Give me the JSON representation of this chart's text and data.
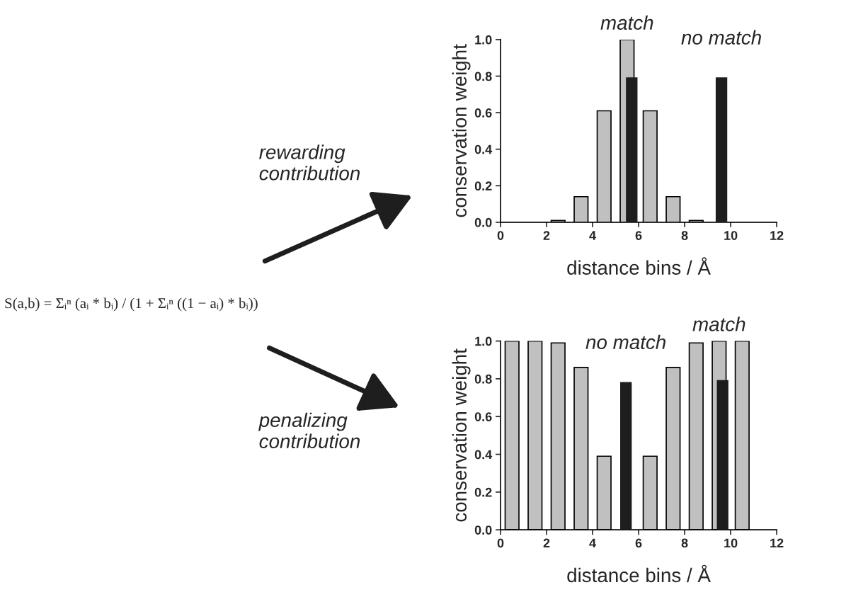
{
  "chart_data": [
    {
      "type": "other",
      "annotations": [
        "S(a,b) = Σᵢⁿ (aᵢ * bᵢ) / (1 + Σᵢⁿ ((1 − aᵢ) * bᵢ))",
        "rewarding\ncontribution",
        "penalizing\ncontribution"
      ]
    },
    {
      "type": "bar",
      "xlabel": "distance bins / Å",
      "ylabel": "conservation weight",
      "xlim": [
        0,
        12
      ],
      "xticks": [
        0,
        2,
        4,
        6,
        8,
        10,
        12
      ],
      "ylim": [
        0,
        1.0
      ],
      "yticks": [
        {
          "value": 0,
          "label": "0.0"
        },
        {
          "value": 0.2,
          "label": "0.2"
        },
        {
          "value": 0.4,
          "label": "0.4"
        },
        {
          "value": 0.6,
          "label": "0.6"
        },
        {
          "value": 0.8,
          "label": "0.8"
        },
        {
          "value": 1.0,
          "label": "1.0"
        }
      ],
      "series": [
        {
          "color": "#c0c0c0",
          "x": [
            2.5,
            3.5,
            4.5,
            5.5,
            6.5,
            7.5,
            8.5
          ],
          "values": [
            0.01,
            0.14,
            0.61,
            1.0,
            0.61,
            0.14,
            0.01
          ]
        },
        {
          "color": "#1e1e1e",
          "x": [
            5.7,
            9.6
          ],
          "values": [
            0.79,
            0.79
          ]
        }
      ],
      "annotations": [
        {
          "text": "match",
          "x": 5.5,
          "y": 1.0
        },
        {
          "text": "no match",
          "x": 9.6,
          "y": 0.79
        }
      ],
      "grid": false,
      "legend": false
    },
    {
      "type": "bar",
      "xlabel": "distance bins / Å",
      "ylabel": "conservation weight",
      "xlim": [
        0,
        12
      ],
      "xticks": [
        0,
        2,
        4,
        6,
        8,
        10,
        12
      ],
      "ylim": [
        0,
        1.0
      ],
      "yticks": [
        {
          "value": 0,
          "label": "0.0"
        },
        {
          "value": 0.2,
          "label": "0.2"
        },
        {
          "value": 0.4,
          "label": "0.4"
        },
        {
          "value": 0.6,
          "label": "0.6"
        },
        {
          "value": 0.8,
          "label": "0.8"
        },
        {
          "value": 1.0,
          "label": "1.0"
        }
      ],
      "series": [
        {
          "color": "#c0c0c0",
          "x": [
            0.5,
            1.5,
            2.5,
            3.5,
            4.5,
            6.5,
            7.5,
            8.5,
            9.5,
            10.5
          ],
          "values": [
            1.0,
            1.0,
            0.99,
            0.86,
            0.39,
            0.39,
            0.86,
            0.99,
            1.0,
            1.0
          ]
        },
        {
          "color": "#1e1e1e",
          "x": [
            5.45,
            9.65
          ],
          "values": [
            0.78,
            0.79
          ]
        }
      ],
      "annotations": [
        {
          "text": "no match",
          "x": 5.45,
          "y": 0.78
        },
        {
          "text": "match",
          "x": 9.5,
          "y": 1.0
        }
      ],
      "grid": false,
      "legend": false
    }
  ]
}
